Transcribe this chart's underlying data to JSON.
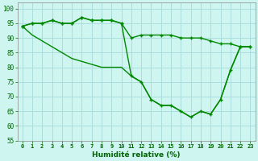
{
  "background_color": "#cef5f0",
  "grid_color": "#aadddd",
  "line_color": "#008800",
  "x": [
    0,
    1,
    2,
    3,
    4,
    5,
    6,
    7,
    8,
    9,
    10,
    11,
    12,
    13,
    14,
    15,
    16,
    17,
    18,
    19,
    20,
    21,
    22,
    23
  ],
  "series1": [
    94,
    95,
    95,
    96,
    95,
    95,
    97,
    96,
    96,
    96,
    95,
    90,
    91,
    91,
    91,
    91,
    90,
    90,
    90,
    89,
    88,
    88,
    87,
    87
  ],
  "series2": [
    94,
    95,
    95,
    96,
    95,
    95,
    97,
    96,
    96,
    96,
    95,
    77,
    75,
    69,
    67,
    67,
    65,
    63,
    65,
    64,
    69,
    79,
    87,
    87
  ],
  "series3": [
    94,
    91,
    89,
    87,
    85,
    83,
    82,
    81,
    80,
    80,
    80,
    77,
    75,
    69,
    67,
    67,
    65,
    63,
    65,
    64,
    69,
    79,
    87,
    87
  ],
  "ylim": [
    55,
    102
  ],
  "yticks": [
    55,
    60,
    65,
    70,
    75,
    80,
    85,
    90,
    95,
    100
  ],
  "xlim": [
    -0.5,
    23.5
  ]
}
